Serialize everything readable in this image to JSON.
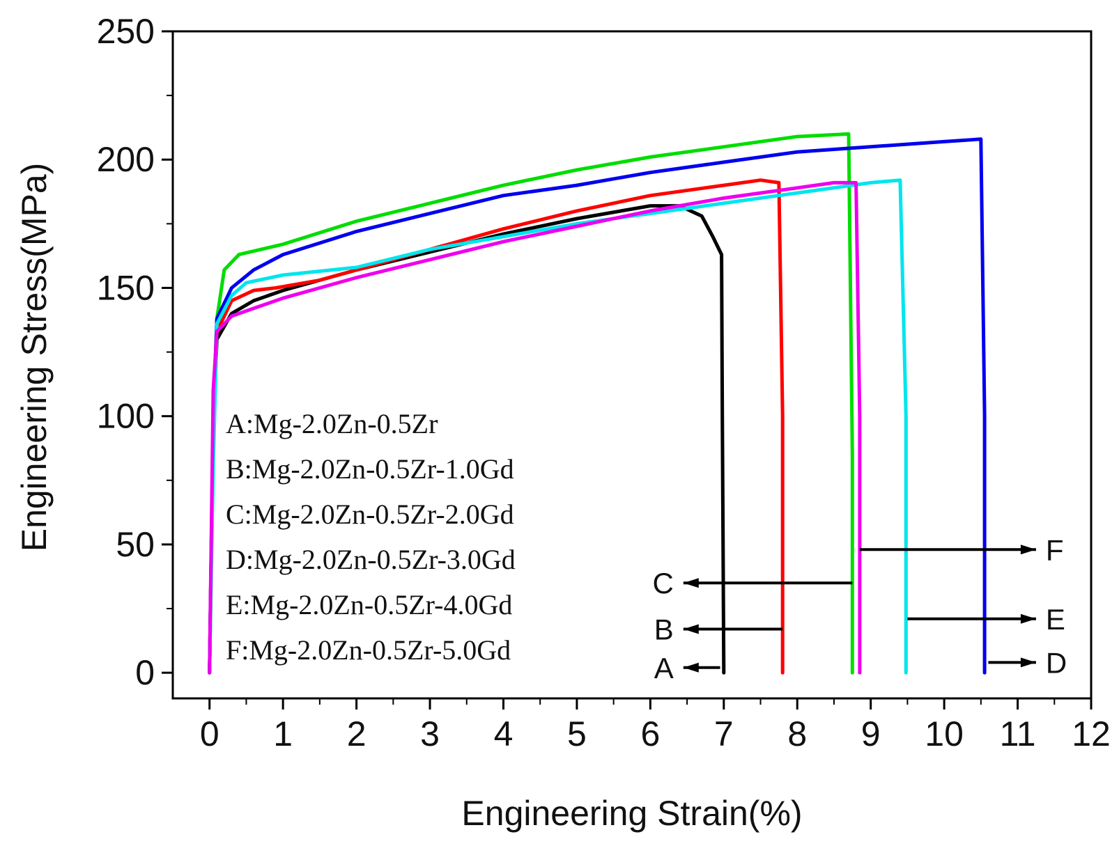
{
  "chart_data": {
    "type": "line",
    "title": "",
    "xlabel": "Engineering Strain(%)",
    "ylabel": "Engineering Stress(MPa)",
    "xlim": [
      -0.5,
      12
    ],
    "ylim": [
      -10,
      250
    ],
    "xticks": [
      0,
      1,
      2,
      3,
      4,
      5,
      6,
      7,
      8,
      9,
      10,
      11,
      12
    ],
    "xtick_labels": [
      "0",
      "1",
      "2",
      "3",
      "4",
      "5",
      "6",
      "7",
      "8",
      "9",
      "10",
      "11",
      "12"
    ],
    "yticks": [
      0,
      50,
      100,
      150,
      200,
      250
    ],
    "ytick_labels": [
      "0",
      "50",
      "100",
      "150",
      "200",
      "250"
    ],
    "grid": false,
    "legend": {
      "placement": "bottom-left",
      "entries": [
        "A:Mg-2.0Zn-0.5Zr",
        "B:Mg-2.0Zn-0.5Zr-1.0Gd",
        "C:Mg-2.0Zn-0.5Zr-2.0Gd",
        "D:Mg-2.0Zn-0.5Zr-3.0Gd",
        "E:Mg-2.0Zn-0.5Zr-4.0Gd",
        "F:Mg-2.0Zn-0.5Zr-5.0Gd"
      ]
    },
    "series": [
      {
        "name": "A",
        "color": "#000000",
        "x": [
          0,
          0.05,
          0.1,
          0.3,
          0.6,
          1,
          2,
          3,
          4,
          5,
          6,
          6.4,
          6.7,
          6.85,
          6.97,
          6.98,
          7.0
        ],
        "y": [
          0,
          95,
          130,
          140,
          145,
          149,
          157,
          164,
          171,
          177,
          182,
          182,
          178,
          170,
          163,
          100,
          0
        ]
      },
      {
        "name": "B",
        "color": "#ff0000",
        "x": [
          0,
          0.05,
          0.1,
          0.3,
          0.6,
          0.9,
          1.5,
          2,
          3,
          4,
          5,
          6,
          7,
          7.5,
          7.75,
          7.8,
          7.8
        ],
        "y": [
          0,
          100,
          133,
          145,
          149,
          150,
          153,
          157,
          165,
          173,
          180,
          186,
          190,
          192,
          191,
          100,
          0
        ]
      },
      {
        "name": "C",
        "color": "#00dd00",
        "x": [
          0,
          0.05,
          0.1,
          0.2,
          0.4,
          0.7,
          1,
          2,
          3,
          4,
          5,
          6,
          7,
          8,
          8.7,
          8.75,
          8.75
        ],
        "y": [
          0,
          100,
          138,
          157,
          163,
          165,
          167,
          176,
          183,
          190,
          196,
          201,
          205,
          209,
          210,
          85,
          0
        ]
      },
      {
        "name": "D",
        "color": "#0000ee",
        "x": [
          0,
          0.05,
          0.1,
          0.3,
          0.6,
          1,
          2,
          3,
          4,
          5,
          6,
          7,
          8,
          9,
          10,
          10.5,
          10.55,
          10.55
        ],
        "y": [
          0,
          100,
          138,
          150,
          157,
          163,
          172,
          179,
          186,
          190,
          195,
          199,
          203,
          205,
          207,
          208,
          100,
          0
        ]
      },
      {
        "name": "E",
        "color": "#00e5ee",
        "x": [
          0,
          0.05,
          0.1,
          0.3,
          0.5,
          1,
          2,
          3,
          4,
          5,
          6,
          7,
          8,
          9,
          9.4,
          9.48,
          9.48
        ],
        "y": [
          0,
          80,
          136,
          147,
          152,
          155,
          158,
          165,
          170,
          175,
          179,
          183,
          187,
          191,
          192,
          100,
          0
        ]
      },
      {
        "name": "F",
        "color": "#ee00ee",
        "x": [
          0,
          0.05,
          0.1,
          0.3,
          0.6,
          1,
          2,
          3,
          4,
          5,
          6,
          7,
          8,
          8.5,
          8.8,
          8.85,
          8.85
        ],
        "y": [
          0,
          110,
          133,
          139,
          142,
          146,
          154,
          161,
          168,
          174,
          180,
          185,
          189,
          191,
          191,
          100,
          0
        ]
      }
    ],
    "annotations": [
      {
        "label": "A",
        "from_x": 6.95,
        "from_y": 2,
        "to_x": 6.45,
        "to_y": 2,
        "side": "left"
      },
      {
        "label": "B",
        "from_x": 7.8,
        "from_y": 17,
        "to_x": 6.45,
        "to_y": 17,
        "side": "left"
      },
      {
        "label": "C",
        "from_x": 8.75,
        "from_y": 35,
        "to_x": 6.45,
        "to_y": 35,
        "side": "left"
      },
      {
        "label": "F",
        "from_x": 8.85,
        "from_y": 48,
        "to_x": 11.25,
        "to_y": 48,
        "side": "right"
      },
      {
        "label": "E",
        "from_x": 9.5,
        "from_y": 21,
        "to_x": 11.25,
        "to_y": 21,
        "side": "right"
      },
      {
        "label": "D",
        "from_x": 10.6,
        "from_y": 4,
        "to_x": 11.25,
        "to_y": 4,
        "side": "right"
      }
    ]
  }
}
